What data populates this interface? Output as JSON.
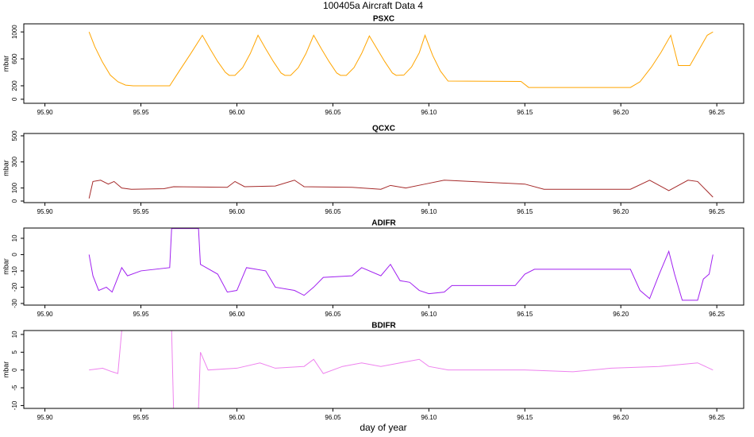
{
  "title": "100405a   Aircraft Data 4",
  "xlabel": "day of year",
  "chart_data": [
    {
      "type": "line",
      "title": "PSXC",
      "ylabel": "mbar",
      "color": "#ffa500",
      "x": [
        95.923,
        95.926,
        95.93,
        95.934,
        95.938,
        95.942,
        95.946,
        95.965,
        95.97,
        95.976,
        95.982,
        95.986,
        95.99,
        95.994,
        95.996,
        95.999,
        96.003,
        96.007,
        96.011,
        96.015,
        96.019,
        96.023,
        96.025,
        96.028,
        96.032,
        96.036,
        96.04,
        96.044,
        96.048,
        96.052,
        96.054,
        96.057,
        96.061,
        96.065,
        96.069,
        96.073,
        96.077,
        96.081,
        96.083,
        96.087,
        96.091,
        96.095,
        96.098,
        96.102,
        96.106,
        96.11,
        96.148,
        96.152,
        96.205,
        96.21,
        96.216,
        96.221,
        96.226,
        96.23,
        96.236,
        96.241,
        96.245,
        96.248
      ],
      "values": [
        1000,
        780,
        550,
        360,
        260,
        210,
        200,
        200,
        420,
        680,
        950,
        750,
        560,
        400,
        355,
        355,
        470,
        680,
        950,
        750,
        560,
        390,
        355,
        355,
        470,
        680,
        950,
        750,
        560,
        390,
        355,
        355,
        470,
        680,
        940,
        750,
        560,
        390,
        355,
        360,
        480,
        690,
        950,
        650,
        420,
        270,
        265,
        175,
        175,
        260,
        480,
        700,
        950,
        500,
        500,
        750,
        950,
        1000
      ],
      "xlim": [
        95.889,
        96.264
      ],
      "ylim": [
        -60,
        1120
      ],
      "xticks": [
        {
          "value": 95.9,
          "label": "95.90"
        },
        95.95,
        {
          "value": 96,
          "label": "96.00"
        },
        96.05,
        {
          "value": 96.1,
          "label": "96.10"
        },
        96.15,
        {
          "value": 96.2,
          "label": "96.20"
        },
        96.25
      ],
      "yticks": [
        0,
        200,
        600,
        1000
      ]
    },
    {
      "type": "line",
      "title": "QCXC",
      "ylabel": "mbar",
      "color": "#a52a2a",
      "x": [
        95.923,
        95.925,
        95.929,
        95.933,
        95.936,
        95.94,
        95.945,
        95.962,
        95.967,
        95.995,
        95.999,
        96.004,
        96.02,
        96.03,
        96.035,
        96.06,
        96.075,
        96.08,
        96.088,
        96.098,
        96.108,
        96.15,
        96.16,
        96.205,
        96.215,
        96.225,
        96.235,
        96.24,
        96.248
      ],
      "values": [
        20,
        150,
        160,
        130,
        150,
        100,
        90,
        95,
        110,
        105,
        150,
        110,
        115,
        160,
        110,
        105,
        90,
        120,
        100,
        130,
        160,
        130,
        90,
        90,
        160,
        80,
        160,
        150,
        30
      ],
      "xlim": [
        95.889,
        96.264
      ],
      "ylim": [
        -12,
        518
      ],
      "xticks": [
        {
          "value": 95.9,
          "label": "95.90"
        },
        95.95,
        {
          "value": 96,
          "label": "96.00"
        },
        96.05,
        {
          "value": 96.1,
          "label": "96.10"
        },
        96.15,
        {
          "value": 96.2,
          "label": "96.20"
        },
        96.25
      ],
      "yticks": [
        0,
        100,
        300,
        500
      ]
    },
    {
      "type": "line",
      "title": "ADIFR",
      "ylabel": "mbar",
      "color": "#a020f0",
      "x": [
        95.923,
        95.925,
        95.928,
        95.932,
        95.935,
        95.938,
        95.94,
        95.943,
        95.95,
        95.965,
        95.966,
        95.98,
        95.981,
        95.99,
        95.995,
        96.0,
        96.005,
        96.015,
        96.02,
        96.03,
        96.035,
        96.04,
        96.045,
        96.06,
        96.065,
        96.075,
        96.08,
        96.085,
        96.09,
        96.095,
        96.1,
        96.108,
        96.112,
        96.145,
        96.15,
        96.155,
        96.205,
        96.21,
        96.215,
        96.22,
        96.225,
        96.228,
        96.232,
        96.24,
        96.243,
        96.246,
        96.248
      ],
      "values": [
        0,
        -13,
        -22,
        -20,
        -23,
        -14,
        -8,
        -13,
        -10,
        -8,
        16,
        16,
        -6,
        -12,
        -23,
        -22,
        -8,
        -10,
        -20,
        -22,
        -25,
        -20,
        -14,
        -13,
        -8,
        -13,
        -6,
        -16,
        -17,
        -22,
        -24,
        -23,
        -19,
        -19,
        -12,
        -9,
        -9,
        -22,
        -27,
        -12,
        2,
        -12,
        -28,
        -28,
        -15,
        -12,
        0
      ],
      "xlim": [
        95.889,
        96.264
      ],
      "ylim": [
        -31,
        16.3
      ],
      "xticks": [
        {
          "value": 95.9,
          "label": "95.90"
        },
        95.95,
        {
          "value": 96,
          "label": "96.00"
        },
        96.05,
        {
          "value": 96.1,
          "label": "96.10"
        },
        96.15,
        {
          "value": 96.2,
          "label": "96.20"
        },
        96.25
      ],
      "yticks": [
        -30,
        -20,
        -10,
        0,
        10
      ]
    },
    {
      "type": "line",
      "title": "BDIFR",
      "ylabel": "mbar",
      "color": "#ee82ee",
      "x": [
        95.923,
        95.93,
        95.935,
        95.938,
        95.94,
        95.95,
        95.966,
        95.967,
        95.98,
        95.981,
        95.985,
        96.0,
        96.012,
        96.02,
        96.035,
        96.04,
        96.045,
        96.055,
        96.065,
        96.075,
        96.085,
        96.095,
        96.1,
        96.11,
        96.15,
        96.175,
        96.195,
        96.22,
        96.23,
        96.24,
        96.248
      ],
      "values": [
        0,
        0.5,
        -0.5,
        -1,
        11,
        null,
        11,
        -11,
        -11,
        5,
        0,
        0.5,
        2,
        0.5,
        1,
        3,
        -1,
        1,
        2,
        1,
        2,
        3,
        1,
        0,
        0,
        -0.5,
        0.5,
        1,
        1.5,
        2,
        0
      ],
      "xlim": [
        95.889,
        96.264
      ],
      "ylim": [
        -10.8,
        11.1
      ],
      "xticks": [
        {
          "value": 95.9,
          "label": "95.90"
        },
        95.95,
        {
          "value": 96,
          "label": "96.00"
        },
        96.05,
        {
          "value": 96.1,
          "label": "96.10"
        },
        96.15,
        {
          "value": 96.2,
          "label": "96.20"
        },
        96.25
      ],
      "yticks": [
        -10,
        -5,
        0,
        5,
        10
      ]
    }
  ]
}
